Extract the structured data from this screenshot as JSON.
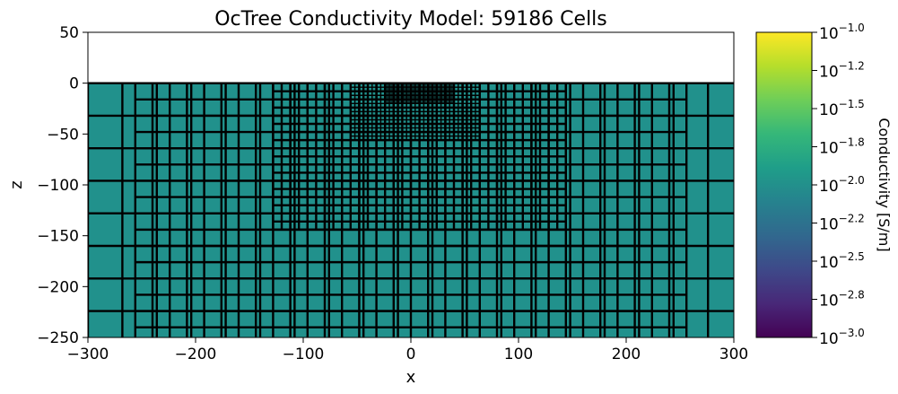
{
  "chart_data": {
    "type": "heatmap",
    "title": "OcTree Conductivity Model: 59186 Cells",
    "xlabel": "x",
    "ylabel": "z",
    "xlim": [
      -300,
      300
    ],
    "ylim": [
      -250,
      50
    ],
    "xticks": [
      -300,
      -200,
      -100,
      0,
      100,
      200,
      300
    ],
    "yticks": [
      -250,
      -200,
      -150,
      -100,
      -50,
      0,
      50
    ],
    "xtick_labels": [
      "−300",
      "−200",
      "−100",
      "0",
      "100",
      "200",
      "300"
    ],
    "ytick_labels": [
      "−250",
      "−200",
      "−150",
      "−100",
      "−50",
      "0",
      "50"
    ],
    "mesh_top": 0,
    "cell_value": 0.01,
    "cell_color": "#21918c",
    "cell_edge_color": "#000000",
    "active_cell_count": 59186,
    "refinement_regions": [
      {
        "xmin": -300,
        "xmax": 300,
        "zmin": -250,
        "zmax": 0,
        "cell_width": 32,
        "cell_height": 32
      },
      {
        "xmin": -256,
        "xmax": 256,
        "zmin": -250,
        "zmax": 0,
        "cell_width": 16,
        "cell_height": 16
      },
      {
        "xmin": -128,
        "xmax": 144,
        "zmin": -144,
        "zmax": 0,
        "cell_width": 8,
        "cell_height": 8
      },
      {
        "xmin": -56,
        "xmax": 64,
        "zmin": -56,
        "zmax": 0,
        "cell_width": 4,
        "cell_height": 4
      },
      {
        "xmin": -24,
        "xmax": 40,
        "zmin": -20,
        "zmax": 0,
        "cell_width": 1,
        "cell_height": 1
      }
    ],
    "colorbar": {
      "label": "Conductivity [S/m]",
      "scale": "log",
      "vmin_exp": -3.0,
      "vmax_exp": -1.0,
      "tick_exponents": [
        "−1.0",
        "−1.2",
        "−1.5",
        "−1.8",
        "−2.0",
        "−2.2",
        "−2.5",
        "−2.8",
        "−3.0"
      ],
      "tick_base": "10",
      "colormap": "viridis",
      "colormap_stops": [
        "#fde725",
        "#b5de2b",
        "#6ece58",
        "#35b779",
        "#1f9e89",
        "#26828e",
        "#31688e",
        "#3e4989",
        "#482878",
        "#440154"
      ]
    }
  }
}
